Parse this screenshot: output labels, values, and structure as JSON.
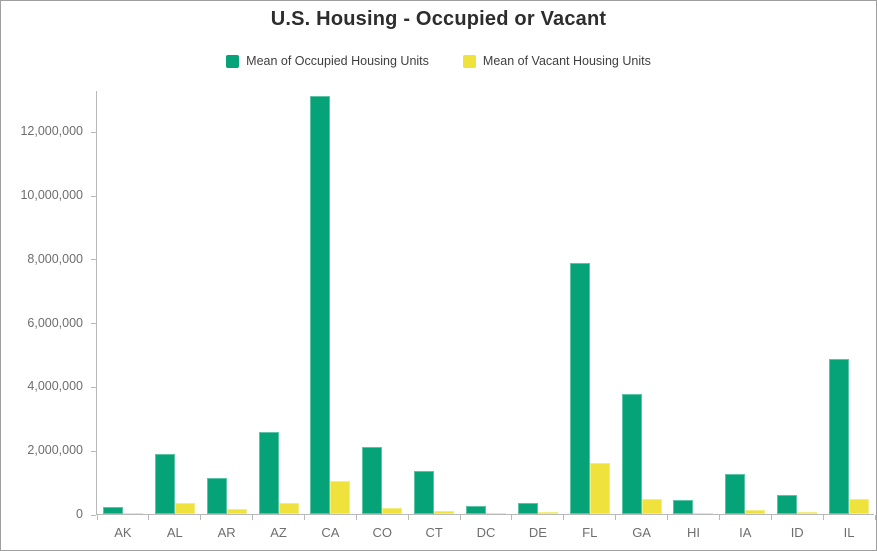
{
  "title": "U.S. Housing - Occupied or Vacant",
  "chart_data": {
    "type": "bar",
    "title": "U.S. Housing - Occupied or Vacant",
    "xlabel": "",
    "ylabel": "",
    "categories": [
      "AK",
      "AL",
      "AR",
      "AZ",
      "CA",
      "CO",
      "CT",
      "DC",
      "DE",
      "FL",
      "GA",
      "HI",
      "IA",
      "ID",
      "IL"
    ],
    "series": [
      {
        "name": "Mean of Occupied Housing Units",
        "color": "#05a377",
        "values": [
          220000,
          1880000,
          1130000,
          2570000,
          13100000,
          2100000,
          1350000,
          250000,
          345000,
          7870000,
          3760000,
          440000,
          1250000,
          600000,
          4860000
        ]
      },
      {
        "name": "Mean of Vacant Housing Units",
        "color": "#efe23d",
        "values": [
          45000,
          345000,
          155000,
          345000,
          1030000,
          190000,
          95000,
          30000,
          65000,
          1600000,
          470000,
          45000,
          110000,
          75000,
          470000
        ]
      }
    ],
    "ylim": [
      0,
      13300000
    ],
    "yticks": [
      0,
      2000000,
      4000000,
      6000000,
      8000000,
      10000000,
      12000000
    ],
    "ytick_labels": [
      "0",
      "2,000,000",
      "4,000,000",
      "6,000,000",
      "8,000,000",
      "10,000,000",
      "12,000,000"
    ],
    "grid": false,
    "legend_position": "top",
    "axis_color": "#b9b9b9",
    "tick_label_color": "#6e6e6e"
  }
}
